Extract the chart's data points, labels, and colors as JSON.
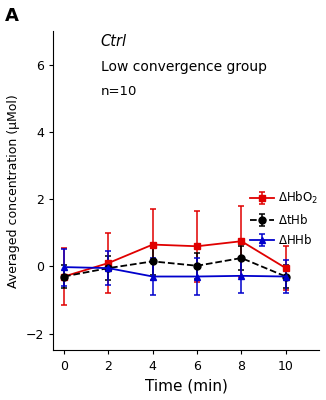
{
  "x": [
    0,
    2,
    4,
    6,
    8,
    10
  ],
  "HbO2_y": [
    -0.3,
    0.1,
    0.65,
    0.6,
    0.75,
    -0.05
  ],
  "HbO2_err": [
    0.85,
    0.9,
    1.05,
    1.05,
    1.05,
    0.65
  ],
  "tHb_y": [
    -0.3,
    -0.05,
    0.15,
    0.02,
    0.25,
    -0.3
  ],
  "tHb_err": [
    0.35,
    0.35,
    0.4,
    0.38,
    0.35,
    0.35
  ],
  "HHb_y": [
    -0.02,
    -0.05,
    -0.3,
    -0.3,
    -0.28,
    -0.3
  ],
  "HHb_err": [
    0.55,
    0.5,
    0.55,
    0.55,
    0.52,
    0.5
  ],
  "HbO2_color": "#e00000",
  "tHb_color": "#000000",
  "HHb_color": "#0000cc",
  "xlabel": "Time (min)",
  "ylabel": "Averaged concentration (μMol)",
  "xlim": [
    -0.5,
    11.5
  ],
  "ylim": [
    -2.5,
    7.0
  ],
  "yticks": [
    -2,
    0,
    2,
    4,
    6
  ],
  "xticks": [
    0,
    2,
    4,
    6,
    8,
    10
  ],
  "title_italic": "Ctrl",
  "title_normal": "Low convergence group",
  "annotation": "n=10",
  "panel_label": "A",
  "background_color": "#ffffff"
}
